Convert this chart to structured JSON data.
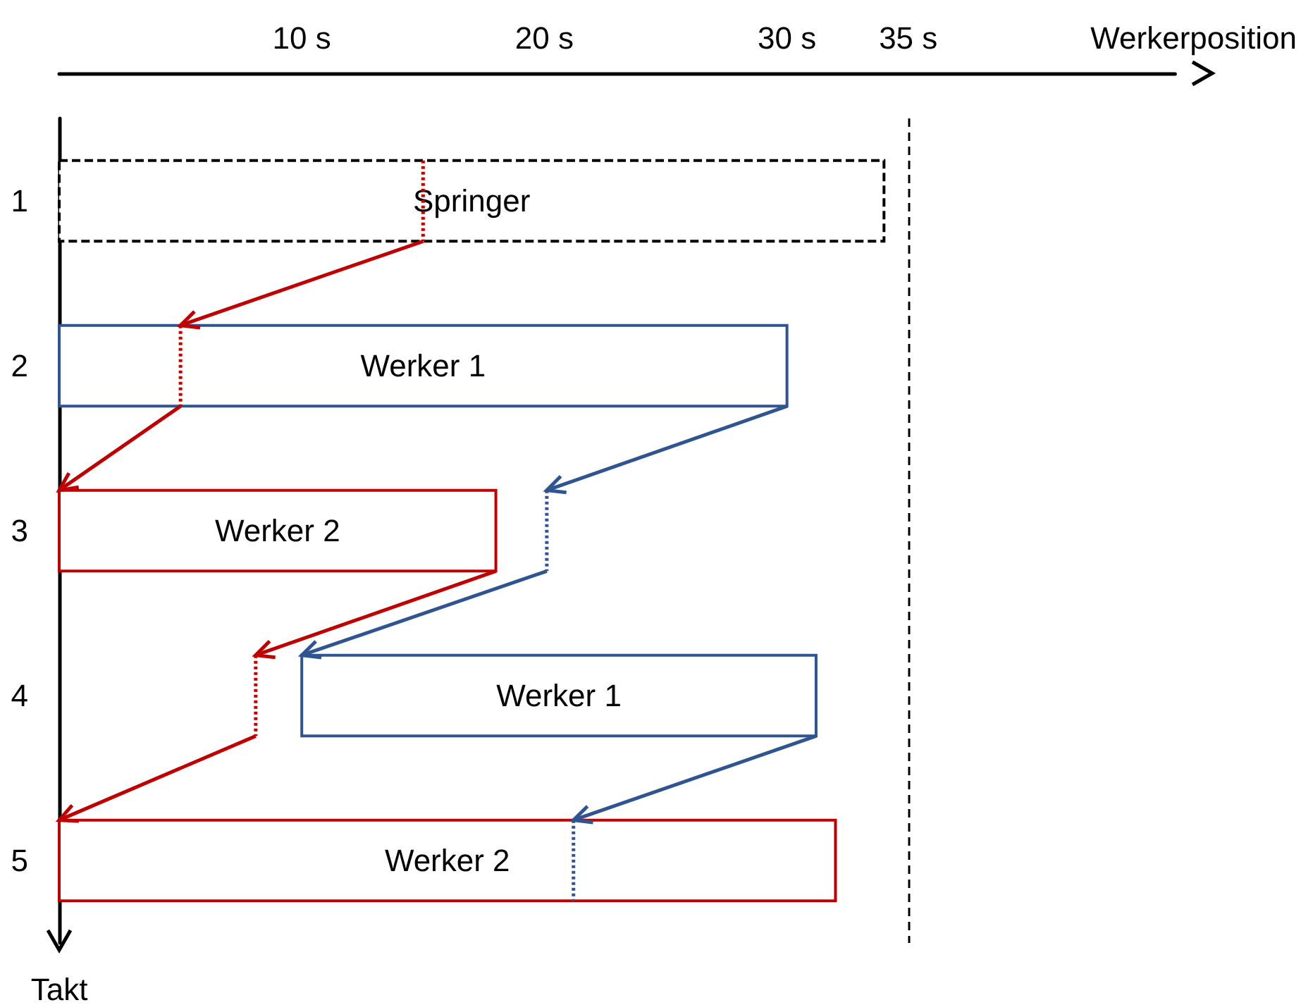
{
  "chart_data": {
    "type": "bar",
    "orientation": "horizontal",
    "xlabel": "Werkerposition",
    "ylabel": "Takt",
    "categories": [
      "1",
      "2",
      "3",
      "4",
      "5"
    ],
    "xlim": [
      0,
      46
    ],
    "xticks": [
      {
        "value": 10,
        "label": "10 s"
      },
      {
        "value": 20,
        "label": "20 s"
      },
      {
        "value": 30,
        "label": "30 s"
      },
      {
        "value": 35,
        "label": "35 s"
      }
    ],
    "series": [
      {
        "name": "Springer",
        "color": "#000000",
        "line_style": "dashed",
        "base": [
          0,
          null,
          null,
          null,
          null
        ],
        "values": [
          34,
          null,
          null,
          null,
          null
        ]
      },
      {
        "name": "Werker 1",
        "color": "#2e5591",
        "base": [
          null,
          0,
          null,
          10,
          null
        ],
        "values": [
          null,
          30,
          null,
          21.2,
          null
        ]
      },
      {
        "name": "Werker 2",
        "color": "#c00000",
        "base": [
          null,
          null,
          0,
          null,
          0
        ],
        "values": [
          null,
          null,
          18,
          null,
          32
        ]
      }
    ],
    "ref_lines": [
      {
        "axis": "x",
        "value": 35,
        "color": "#000000",
        "line_style": "dashed"
      }
    ]
  }
}
